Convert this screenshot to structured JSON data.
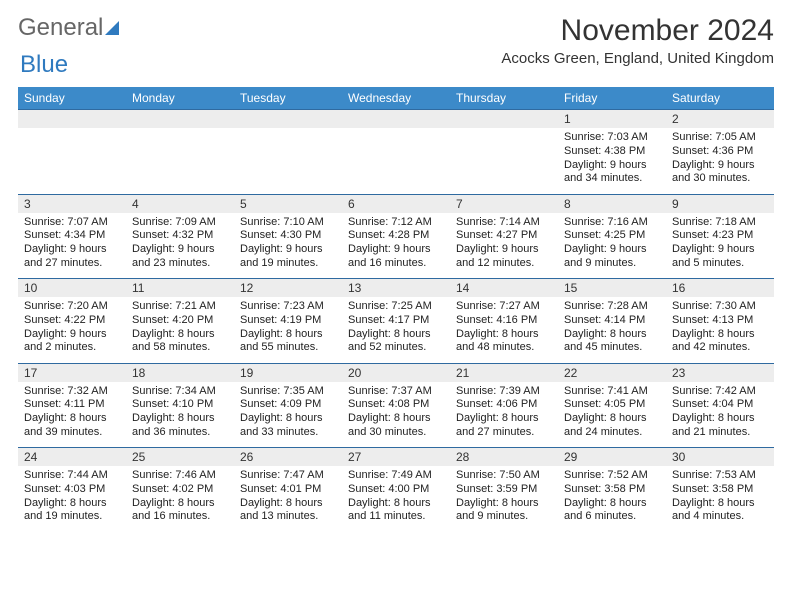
{
  "logo": {
    "part1": "General",
    "part2": "Blue"
  },
  "title": "November 2024",
  "subtitle": "Acocks Green, England, United Kingdom",
  "colors": {
    "header_bg": "#3c8ac9",
    "header_text": "#ffffff",
    "numrow_bg": "#ededed",
    "row_divider": "#2f6aa0",
    "body_text": "#222222",
    "logo_gray": "#666666",
    "logo_blue": "#2f7abf",
    "page_bg": "#ffffff"
  },
  "fonts": {
    "title_size_pt": 22,
    "subtitle_size_pt": 11,
    "header_size_pt": 9,
    "daynum_size_pt": 9,
    "cell_size_pt": 8
  },
  "weekdays": [
    "Sunday",
    "Monday",
    "Tuesday",
    "Wednesday",
    "Thursday",
    "Friday",
    "Saturday"
  ],
  "weeks": [
    [
      {
        "n": "",
        "lines": []
      },
      {
        "n": "",
        "lines": []
      },
      {
        "n": "",
        "lines": []
      },
      {
        "n": "",
        "lines": []
      },
      {
        "n": "",
        "lines": []
      },
      {
        "n": "1",
        "lines": [
          "Sunrise: 7:03 AM",
          "Sunset: 4:38 PM",
          "Daylight: 9 hours and 34 minutes."
        ]
      },
      {
        "n": "2",
        "lines": [
          "Sunrise: 7:05 AM",
          "Sunset: 4:36 PM",
          "Daylight: 9 hours and 30 minutes."
        ]
      }
    ],
    [
      {
        "n": "3",
        "lines": [
          "Sunrise: 7:07 AM",
          "Sunset: 4:34 PM",
          "Daylight: 9 hours and 27 minutes."
        ]
      },
      {
        "n": "4",
        "lines": [
          "Sunrise: 7:09 AM",
          "Sunset: 4:32 PM",
          "Daylight: 9 hours and 23 minutes."
        ]
      },
      {
        "n": "5",
        "lines": [
          "Sunrise: 7:10 AM",
          "Sunset: 4:30 PM",
          "Daylight: 9 hours and 19 minutes."
        ]
      },
      {
        "n": "6",
        "lines": [
          "Sunrise: 7:12 AM",
          "Sunset: 4:28 PM",
          "Daylight: 9 hours and 16 minutes."
        ]
      },
      {
        "n": "7",
        "lines": [
          "Sunrise: 7:14 AM",
          "Sunset: 4:27 PM",
          "Daylight: 9 hours and 12 minutes."
        ]
      },
      {
        "n": "8",
        "lines": [
          "Sunrise: 7:16 AM",
          "Sunset: 4:25 PM",
          "Daylight: 9 hours and 9 minutes."
        ]
      },
      {
        "n": "9",
        "lines": [
          "Sunrise: 7:18 AM",
          "Sunset: 4:23 PM",
          "Daylight: 9 hours and 5 minutes."
        ]
      }
    ],
    [
      {
        "n": "10",
        "lines": [
          "Sunrise: 7:20 AM",
          "Sunset: 4:22 PM",
          "Daylight: 9 hours and 2 minutes."
        ]
      },
      {
        "n": "11",
        "lines": [
          "Sunrise: 7:21 AM",
          "Sunset: 4:20 PM",
          "Daylight: 8 hours and 58 minutes."
        ]
      },
      {
        "n": "12",
        "lines": [
          "Sunrise: 7:23 AM",
          "Sunset: 4:19 PM",
          "Daylight: 8 hours and 55 minutes."
        ]
      },
      {
        "n": "13",
        "lines": [
          "Sunrise: 7:25 AM",
          "Sunset: 4:17 PM",
          "Daylight: 8 hours and 52 minutes."
        ]
      },
      {
        "n": "14",
        "lines": [
          "Sunrise: 7:27 AM",
          "Sunset: 4:16 PM",
          "Daylight: 8 hours and 48 minutes."
        ]
      },
      {
        "n": "15",
        "lines": [
          "Sunrise: 7:28 AM",
          "Sunset: 4:14 PM",
          "Daylight: 8 hours and 45 minutes."
        ]
      },
      {
        "n": "16",
        "lines": [
          "Sunrise: 7:30 AM",
          "Sunset: 4:13 PM",
          "Daylight: 8 hours and 42 minutes."
        ]
      }
    ],
    [
      {
        "n": "17",
        "lines": [
          "Sunrise: 7:32 AM",
          "Sunset: 4:11 PM",
          "Daylight: 8 hours and 39 minutes."
        ]
      },
      {
        "n": "18",
        "lines": [
          "Sunrise: 7:34 AM",
          "Sunset: 4:10 PM",
          "Daylight: 8 hours and 36 minutes."
        ]
      },
      {
        "n": "19",
        "lines": [
          "Sunrise: 7:35 AM",
          "Sunset: 4:09 PM",
          "Daylight: 8 hours and 33 minutes."
        ]
      },
      {
        "n": "20",
        "lines": [
          "Sunrise: 7:37 AM",
          "Sunset: 4:08 PM",
          "Daylight: 8 hours and 30 minutes."
        ]
      },
      {
        "n": "21",
        "lines": [
          "Sunrise: 7:39 AM",
          "Sunset: 4:06 PM",
          "Daylight: 8 hours and 27 minutes."
        ]
      },
      {
        "n": "22",
        "lines": [
          "Sunrise: 7:41 AM",
          "Sunset: 4:05 PM",
          "Daylight: 8 hours and 24 minutes."
        ]
      },
      {
        "n": "23",
        "lines": [
          "Sunrise: 7:42 AM",
          "Sunset: 4:04 PM",
          "Daylight: 8 hours and 21 minutes."
        ]
      }
    ],
    [
      {
        "n": "24",
        "lines": [
          "Sunrise: 7:44 AM",
          "Sunset: 4:03 PM",
          "Daylight: 8 hours and 19 minutes."
        ]
      },
      {
        "n": "25",
        "lines": [
          "Sunrise: 7:46 AM",
          "Sunset: 4:02 PM",
          "Daylight: 8 hours and 16 minutes."
        ]
      },
      {
        "n": "26",
        "lines": [
          "Sunrise: 7:47 AM",
          "Sunset: 4:01 PM",
          "Daylight: 8 hours and 13 minutes."
        ]
      },
      {
        "n": "27",
        "lines": [
          "Sunrise: 7:49 AM",
          "Sunset: 4:00 PM",
          "Daylight: 8 hours and 11 minutes."
        ]
      },
      {
        "n": "28",
        "lines": [
          "Sunrise: 7:50 AM",
          "Sunset: 3:59 PM",
          "Daylight: 8 hours and 9 minutes."
        ]
      },
      {
        "n": "29",
        "lines": [
          "Sunrise: 7:52 AM",
          "Sunset: 3:58 PM",
          "Daylight: 8 hours and 6 minutes."
        ]
      },
      {
        "n": "30",
        "lines": [
          "Sunrise: 7:53 AM",
          "Sunset: 3:58 PM",
          "Daylight: 8 hours and 4 minutes."
        ]
      }
    ]
  ]
}
